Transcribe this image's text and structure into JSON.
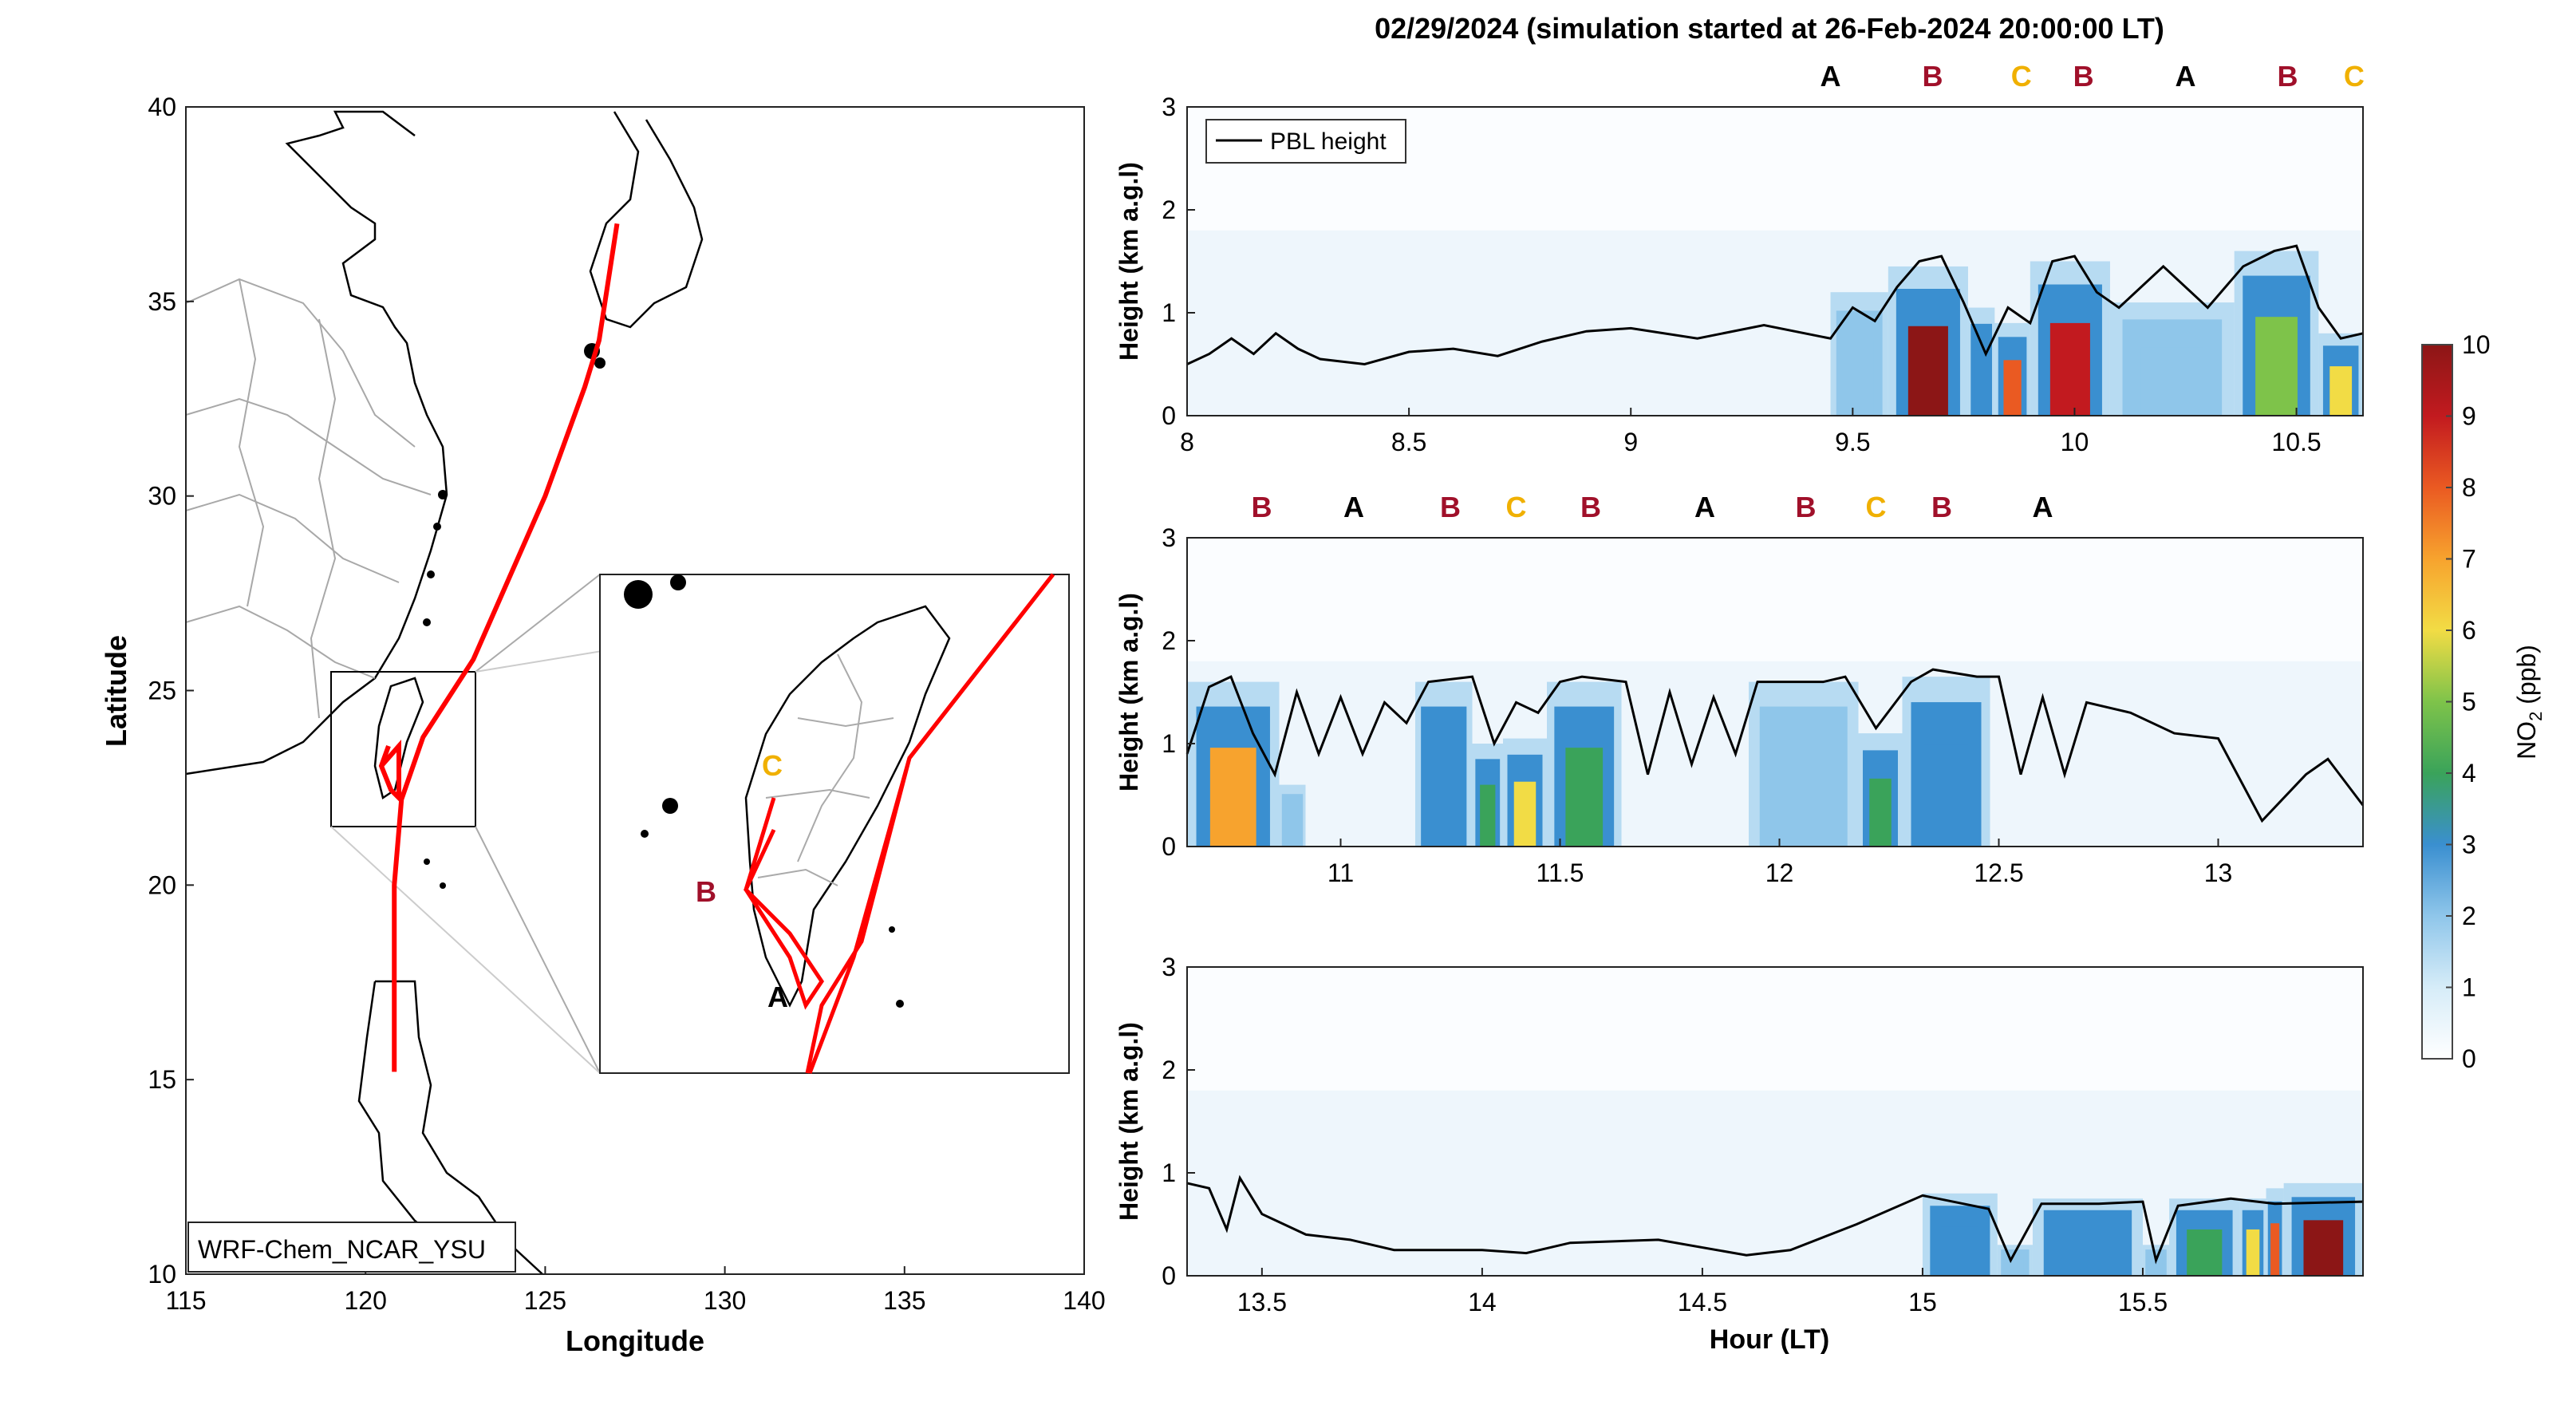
{
  "figure": {
    "title": "02/29/2024 (simulation started at 26-Feb-2024 20:00:00 LT)"
  },
  "colors": {
    "track": "#ff0000",
    "pbl": "#000000",
    "label_A": "#000000",
    "label_B": "#a0102a",
    "label_C": "#f0b000",
    "colormap": [
      "#ffffff",
      "#d6ecf8",
      "#8fc6ea",
      "#3a8fd0",
      "#3aa35a",
      "#7ec34a",
      "#f2dc45",
      "#f7a32e",
      "#ea5a22",
      "#c21a1f",
      "#8c1616"
    ]
  },
  "chart_data": [
    {
      "type": "map",
      "xlabel": "Longitude",
      "ylabel": "Latitude",
      "xlim": [
        115,
        140
      ],
      "ylim": [
        10,
        40
      ],
      "xticks": [
        "115",
        "120",
        "125",
        "130",
        "135",
        "140"
      ],
      "yticks": [
        "10",
        "15",
        "20",
        "25",
        "30",
        "35",
        "40"
      ],
      "model_label": "WRF-Chem_NCAR_YSU",
      "track": [
        {
          "lon": 127.0,
          "lat": 37.0
        },
        {
          "lon": 126.5,
          "lat": 34.0
        },
        {
          "lon": 126.1,
          "lat": 32.8
        },
        {
          "lon": 125.0,
          "lat": 30.0
        },
        {
          "lon": 123.0,
          "lat": 25.8
        },
        {
          "lon": 121.6,
          "lat": 23.8
        },
        {
          "lon": 121.0,
          "lat": 22.2
        },
        {
          "lon": 120.8,
          "lat": 20.0
        },
        {
          "lon": 120.8,
          "lat": 17.5
        },
        {
          "lon": 120.8,
          "lat": 15.2
        }
      ],
      "inset_labels": [
        "A",
        "B",
        "C"
      ]
    },
    {
      "type": "heatmap",
      "panel": "top",
      "xlabel": "",
      "ylabel": "Height (km a.g.l)",
      "xlim": [
        8,
        10.65
      ],
      "ylim": [
        0,
        3
      ],
      "xticks": [
        "8",
        "8.5",
        "9",
        "9.5",
        "10",
        "10.5"
      ],
      "yticks": [
        "0",
        "1",
        "2",
        "3"
      ],
      "legend": [
        "PBL height"
      ],
      "site_labels": [
        {
          "t": 9.45,
          "label": "A"
        },
        {
          "t": 9.68,
          "label": "B"
        },
        {
          "t": 9.88,
          "label": "C"
        },
        {
          "t": 10.02,
          "label": "B"
        },
        {
          "t": 10.25,
          "label": "A"
        },
        {
          "t": 10.48,
          "label": "B"
        },
        {
          "t": 10.63,
          "label": "C"
        }
      ],
      "pbl_height": [
        {
          "t": 8.0,
          "h": 0.5
        },
        {
          "t": 8.05,
          "h": 0.6
        },
        {
          "t": 8.1,
          "h": 0.75
        },
        {
          "t": 8.15,
          "h": 0.6
        },
        {
          "t": 8.2,
          "h": 0.8
        },
        {
          "t": 8.25,
          "h": 0.65
        },
        {
          "t": 8.3,
          "h": 0.55
        },
        {
          "t": 8.4,
          "h": 0.5
        },
        {
          "t": 8.5,
          "h": 0.62
        },
        {
          "t": 8.6,
          "h": 0.65
        },
        {
          "t": 8.7,
          "h": 0.58
        },
        {
          "t": 8.8,
          "h": 0.72
        },
        {
          "t": 8.9,
          "h": 0.82
        },
        {
          "t": 9.0,
          "h": 0.85
        },
        {
          "t": 9.15,
          "h": 0.75
        },
        {
          "t": 9.3,
          "h": 0.88
        },
        {
          "t": 9.45,
          "h": 0.75
        },
        {
          "t": 9.5,
          "h": 1.05
        },
        {
          "t": 9.55,
          "h": 0.92
        },
        {
          "t": 9.6,
          "h": 1.25
        },
        {
          "t": 9.65,
          "h": 1.5
        },
        {
          "t": 9.7,
          "h": 1.55
        },
        {
          "t": 9.75,
          "h": 1.1
        },
        {
          "t": 9.8,
          "h": 0.6
        },
        {
          "t": 9.85,
          "h": 1.05
        },
        {
          "t": 9.9,
          "h": 0.9
        },
        {
          "t": 9.95,
          "h": 1.5
        },
        {
          "t": 10.0,
          "h": 1.55
        },
        {
          "t": 10.05,
          "h": 1.2
        },
        {
          "t": 10.1,
          "h": 1.05
        },
        {
          "t": 10.2,
          "h": 1.45
        },
        {
          "t": 10.3,
          "h": 1.05
        },
        {
          "t": 10.38,
          "h": 1.45
        },
        {
          "t": 10.45,
          "h": 1.6
        },
        {
          "t": 10.5,
          "h": 1.65
        },
        {
          "t": 10.55,
          "h": 1.05
        },
        {
          "t": 10.6,
          "h": 0.75
        },
        {
          "t": 10.65,
          "h": 0.8
        }
      ],
      "no2_columns": [
        {
          "t0": 9.45,
          "t1": 9.58,
          "h": 1.2,
          "v": 2.0
        },
        {
          "t0": 9.58,
          "t1": 9.76,
          "h": 1.45,
          "v": 9.5
        },
        {
          "t0": 9.76,
          "t1": 9.82,
          "h": 1.05,
          "v": 2.5
        },
        {
          "t0": 9.82,
          "t1": 9.9,
          "h": 0.9,
          "v": 7.5
        },
        {
          "t0": 9.9,
          "t1": 10.08,
          "h": 1.5,
          "v": 9.0
        },
        {
          "t0": 10.08,
          "t1": 10.36,
          "h": 1.1,
          "v": 1.6
        },
        {
          "t0": 10.36,
          "t1": 10.55,
          "h": 1.6,
          "v": 5.0
        },
        {
          "t0": 10.55,
          "t1": 10.65,
          "h": 0.8,
          "v": 6.0
        }
      ]
    },
    {
      "type": "heatmap",
      "panel": "middle",
      "xlabel": "",
      "ylabel": "Height (km a.g.l)",
      "xlim": [
        10.65,
        13.33
      ],
      "ylim": [
        0,
        3
      ],
      "xticks": [
        "11",
        "11.5",
        "12",
        "12.5",
        "13"
      ],
      "yticks": [
        "0",
        "1",
        "2",
        "3"
      ],
      "site_labels": [
        {
          "t": 10.82,
          "label": "B"
        },
        {
          "t": 11.03,
          "label": "A"
        },
        {
          "t": 11.25,
          "label": "B"
        },
        {
          "t": 11.4,
          "label": "C"
        },
        {
          "t": 11.57,
          "label": "B"
        },
        {
          "t": 11.83,
          "label": "A"
        },
        {
          "t": 12.06,
          "label": "B"
        },
        {
          "t": 12.22,
          "label": "C"
        },
        {
          "t": 12.37,
          "label": "B"
        },
        {
          "t": 12.6,
          "label": "A"
        }
      ],
      "pbl_height": [
        {
          "t": 10.65,
          "h": 0.9
        },
        {
          "t": 10.7,
          "h": 1.55
        },
        {
          "t": 10.75,
          "h": 1.65
        },
        {
          "t": 10.8,
          "h": 1.1
        },
        {
          "t": 10.85,
          "h": 0.7
        },
        {
          "t": 10.9,
          "h": 1.5
        },
        {
          "t": 10.95,
          "h": 0.9
        },
        {
          "t": 11.0,
          "h": 1.45
        },
        {
          "t": 11.05,
          "h": 0.9
        },
        {
          "t": 11.1,
          "h": 1.4
        },
        {
          "t": 11.15,
          "h": 1.2
        },
        {
          "t": 11.2,
          "h": 1.6
        },
        {
          "t": 11.3,
          "h": 1.65
        },
        {
          "t": 11.35,
          "h": 1.0
        },
        {
          "t": 11.4,
          "h": 1.4
        },
        {
          "t": 11.45,
          "h": 1.3
        },
        {
          "t": 11.5,
          "h": 1.6
        },
        {
          "t": 11.55,
          "h": 1.65
        },
        {
          "t": 11.65,
          "h": 1.6
        },
        {
          "t": 11.7,
          "h": 0.7
        },
        {
          "t": 11.75,
          "h": 1.5
        },
        {
          "t": 11.8,
          "h": 0.8
        },
        {
          "t": 11.85,
          "h": 1.45
        },
        {
          "t": 11.9,
          "h": 0.9
        },
        {
          "t": 11.95,
          "h": 1.6
        },
        {
          "t": 12.1,
          "h": 1.6
        },
        {
          "t": 12.15,
          "h": 1.65
        },
        {
          "t": 12.22,
          "h": 1.15
        },
        {
          "t": 12.3,
          "h": 1.6
        },
        {
          "t": 12.35,
          "h": 1.72
        },
        {
          "t": 12.45,
          "h": 1.65
        },
        {
          "t": 12.5,
          "h": 1.65
        },
        {
          "t": 12.55,
          "h": 0.7
        },
        {
          "t": 12.6,
          "h": 1.45
        },
        {
          "t": 12.65,
          "h": 0.7
        },
        {
          "t": 12.7,
          "h": 1.4
        },
        {
          "t": 12.8,
          "h": 1.3
        },
        {
          "t": 12.9,
          "h": 1.1
        },
        {
          "t": 13.0,
          "h": 1.05
        },
        {
          "t": 13.1,
          "h": 0.25
        },
        {
          "t": 13.2,
          "h": 0.7
        },
        {
          "t": 13.25,
          "h": 0.85
        },
        {
          "t": 13.33,
          "h": 0.4
        }
      ],
      "no2_columns": [
        {
          "t0": 10.65,
          "t1": 10.86,
          "h": 1.6,
          "v": 7.0
        },
        {
          "t0": 10.86,
          "t1": 10.92,
          "h": 0.6,
          "v": 2.2
        },
        {
          "t0": 11.17,
          "t1": 11.3,
          "h": 1.6,
          "v": 3.0
        },
        {
          "t0": 11.3,
          "t1": 11.37,
          "h": 1.0,
          "v": 3.5
        },
        {
          "t0": 11.37,
          "t1": 11.47,
          "h": 1.05,
          "v": 5.5
        },
        {
          "t0": 11.47,
          "t1": 11.64,
          "h": 1.6,
          "v": 4.0
        },
        {
          "t0": 11.93,
          "t1": 12.18,
          "h": 1.6,
          "v": 2.2
        },
        {
          "t0": 12.18,
          "t1": 12.28,
          "h": 1.1,
          "v": 4.2
        },
        {
          "t0": 12.28,
          "t1": 12.48,
          "h": 1.65,
          "v": 2.5
        }
      ]
    },
    {
      "type": "heatmap",
      "panel": "bottom",
      "xlabel": "Hour (LT)",
      "ylabel": "Height (km a.g.l)",
      "xlim": [
        13.33,
        16.0
      ],
      "ylim": [
        0,
        3
      ],
      "xticks": [
        "13.5",
        "14",
        "14.5",
        "15",
        "15.5"
      ],
      "yticks": [
        "0",
        "1",
        "2",
        "3"
      ],
      "pbl_height": [
        {
          "t": 13.33,
          "h": 0.9
        },
        {
          "t": 13.38,
          "h": 0.85
        },
        {
          "t": 13.42,
          "h": 0.45
        },
        {
          "t": 13.45,
          "h": 0.95
        },
        {
          "t": 13.5,
          "h": 0.6
        },
        {
          "t": 13.6,
          "h": 0.4
        },
        {
          "t": 13.7,
          "h": 0.35
        },
        {
          "t": 13.8,
          "h": 0.25
        },
        {
          "t": 14.0,
          "h": 0.25
        },
        {
          "t": 14.1,
          "h": 0.22
        },
        {
          "t": 14.2,
          "h": 0.32
        },
        {
          "t": 14.4,
          "h": 0.35
        },
        {
          "t": 14.6,
          "h": 0.2
        },
        {
          "t": 14.7,
          "h": 0.25
        },
        {
          "t": 14.85,
          "h": 0.5
        },
        {
          "t": 15.0,
          "h": 0.78
        },
        {
          "t": 15.15,
          "h": 0.65
        },
        {
          "t": 15.2,
          "h": 0.15
        },
        {
          "t": 15.27,
          "h": 0.7
        },
        {
          "t": 15.4,
          "h": 0.7
        },
        {
          "t": 15.5,
          "h": 0.72
        },
        {
          "t": 15.53,
          "h": 0.15
        },
        {
          "t": 15.58,
          "h": 0.68
        },
        {
          "t": 15.7,
          "h": 0.75
        },
        {
          "t": 15.8,
          "h": 0.7
        },
        {
          "t": 16.0,
          "h": 0.72
        }
      ],
      "no2_columns": [
        {
          "t0": 15.0,
          "t1": 15.17,
          "h": 0.8,
          "v": 2.6
        },
        {
          "t0": 15.17,
          "t1": 15.25,
          "h": 0.3,
          "v": 2.0
        },
        {
          "t0": 15.25,
          "t1": 15.5,
          "h": 0.75,
          "v": 2.6
        },
        {
          "t0": 15.5,
          "t1": 15.56,
          "h": 0.3,
          "v": 2.0
        },
        {
          "t0": 15.56,
          "t1": 15.72,
          "h": 0.75,
          "v": 3.8
        },
        {
          "t0": 15.72,
          "t1": 15.78,
          "h": 0.75,
          "v": 5.5
        },
        {
          "t0": 15.78,
          "t1": 15.82,
          "h": 0.85,
          "v": 7.5
        },
        {
          "t0": 15.82,
          "t1": 16.0,
          "h": 0.9,
          "v": 9.5
        }
      ]
    },
    {
      "type": "colorbar",
      "label": "NO2 (ppb)",
      "label_base": "NO",
      "label_sub": "2",
      "label_unit": " (ppb)",
      "ylim": [
        0,
        10
      ],
      "ticks": [
        "0",
        "1",
        "2",
        "3",
        "4",
        "5",
        "6",
        "7",
        "8",
        "9",
        "10"
      ]
    }
  ]
}
